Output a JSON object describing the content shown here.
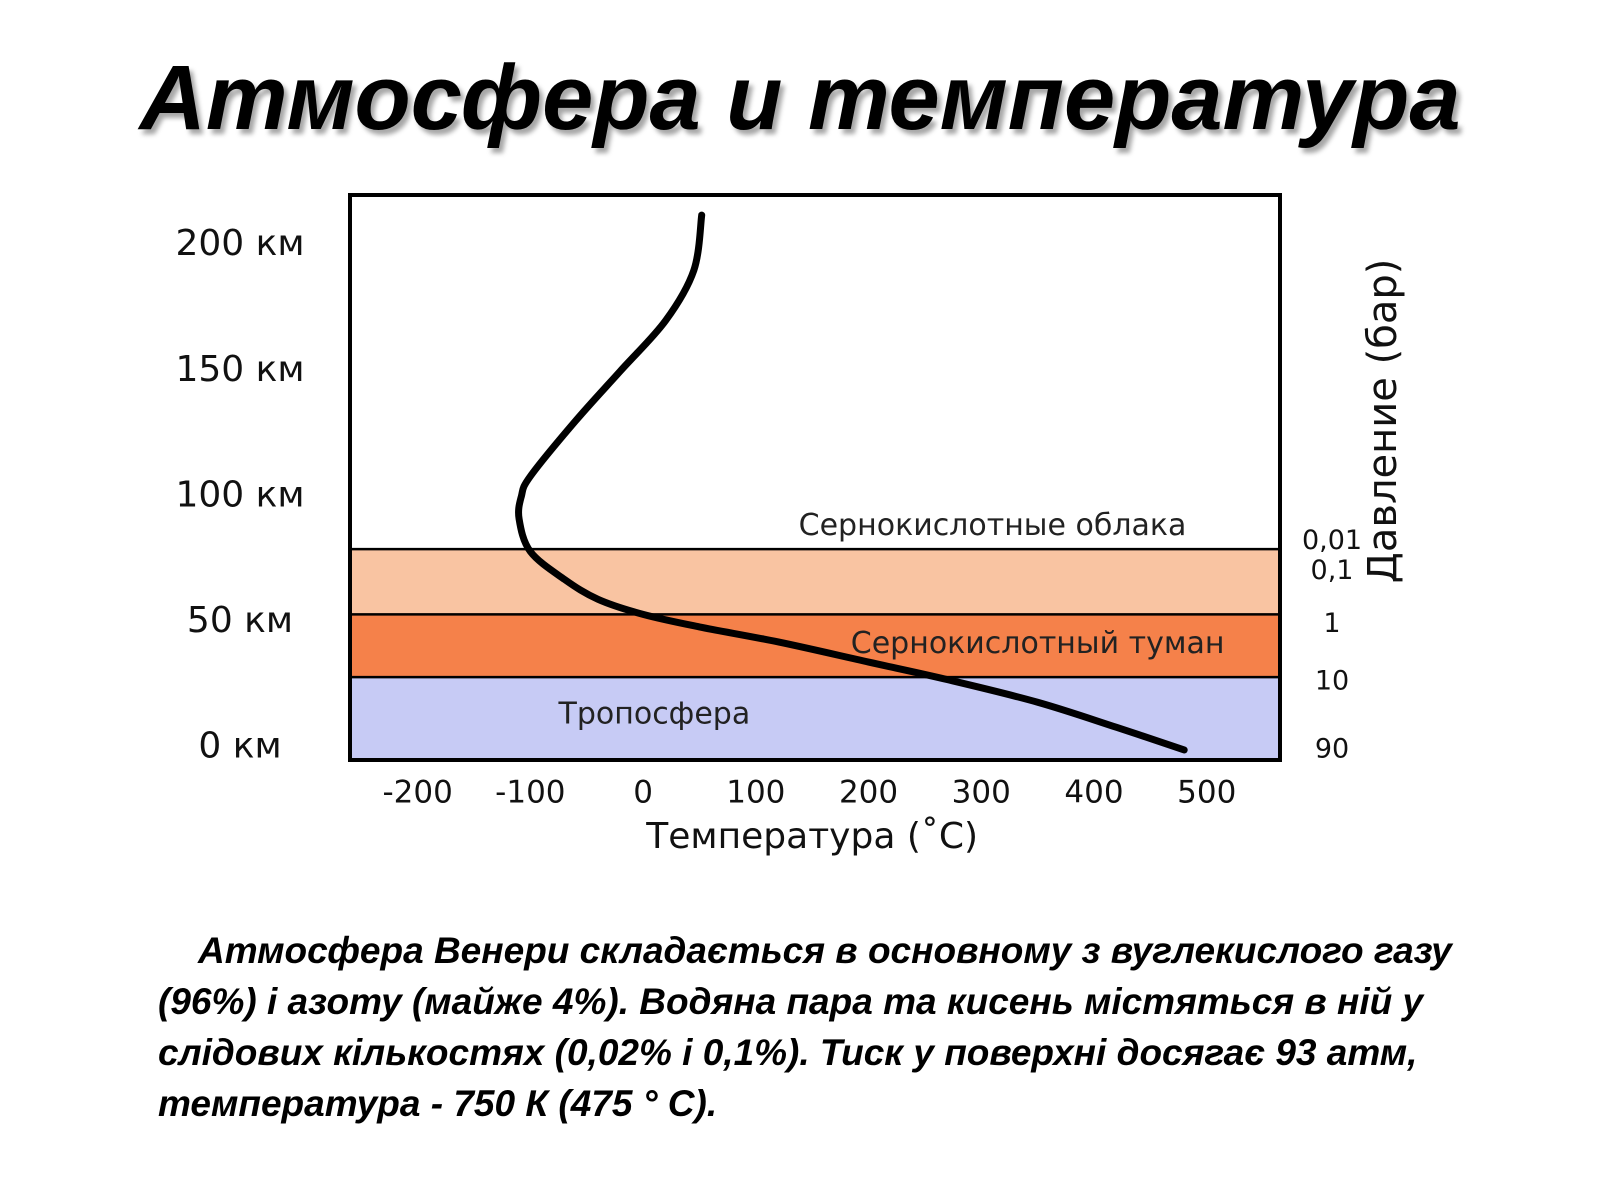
{
  "slide": {
    "title": "Атмосфера и температура",
    "caption": "Атмосфера Венери складається в основному з вуглекислого газу (96%) і азоту (майже 4%). Водяна пара та кисень містяться в ній у слідових кількостях (0,02% і 0,1%). Тиск у поверхні досягає 93 атм, температура - 750 К (475 ° C)."
  },
  "chart_data": {
    "type": "line",
    "xlabel": "Температура (˚C)",
    "ylabel_right": "Давление (бар)",
    "xlim": [
      -260,
      565
    ],
    "x_ticks": [
      -200,
      -100,
      0,
      100,
      200,
      300,
      400,
      500
    ],
    "ylim": [
      -5,
      220
    ],
    "y_ticks": [
      {
        "value": 200,
        "label": "200 км"
      },
      {
        "value": 150,
        "label": "150 км"
      },
      {
        "value": 100,
        "label": "100 км"
      },
      {
        "value": 50,
        "label": "50 км"
      },
      {
        "value": 0,
        "label": "0 км"
      }
    ],
    "pressure_ticks": [
      {
        "altitude": 82,
        "label": "0,01"
      },
      {
        "altitude": 70,
        "label": "0,1"
      },
      {
        "altitude": 49,
        "label": "1"
      },
      {
        "altitude": 26,
        "label": "10"
      },
      {
        "altitude": -1,
        "label": "90"
      }
    ],
    "layers": [
      {
        "name": "Тропосфера",
        "from": -5,
        "to": 28,
        "color": "#c7cbf5",
        "label_x": 10,
        "label_alt": 13
      },
      {
        "name": "Сернокислотный туман",
        "from": 28,
        "to": 53,
        "color": "#f5814a",
        "label_x": 350,
        "label_alt": 41
      },
      {
        "name": "",
        "from": 53,
        "to": 79,
        "color": "#f9c4a2"
      },
      {
        "name": "Сернокислотные облака",
        "from": 79,
        "to": 220,
        "color": "#ffffff",
        "label_x": 310,
        "label_alt": 88
      }
    ],
    "series": [
      {
        "points": [
          [
            480,
            -1
          ],
          [
            420,
            8
          ],
          [
            350,
            18
          ],
          [
            270,
            27
          ],
          [
            200,
            34
          ],
          [
            120,
            42
          ],
          [
            50,
            48
          ],
          [
            0,
            53
          ],
          [
            -40,
            59
          ],
          [
            -70,
            67
          ],
          [
            -100,
            78
          ],
          [
            -110,
            91
          ],
          [
            -108,
            100
          ],
          [
            -100,
            108
          ],
          [
            -60,
            130
          ],
          [
            -20,
            150
          ],
          [
            20,
            170
          ],
          [
            45,
            190
          ],
          [
            52,
            212
          ]
        ],
        "color": "#000000"
      }
    ]
  }
}
